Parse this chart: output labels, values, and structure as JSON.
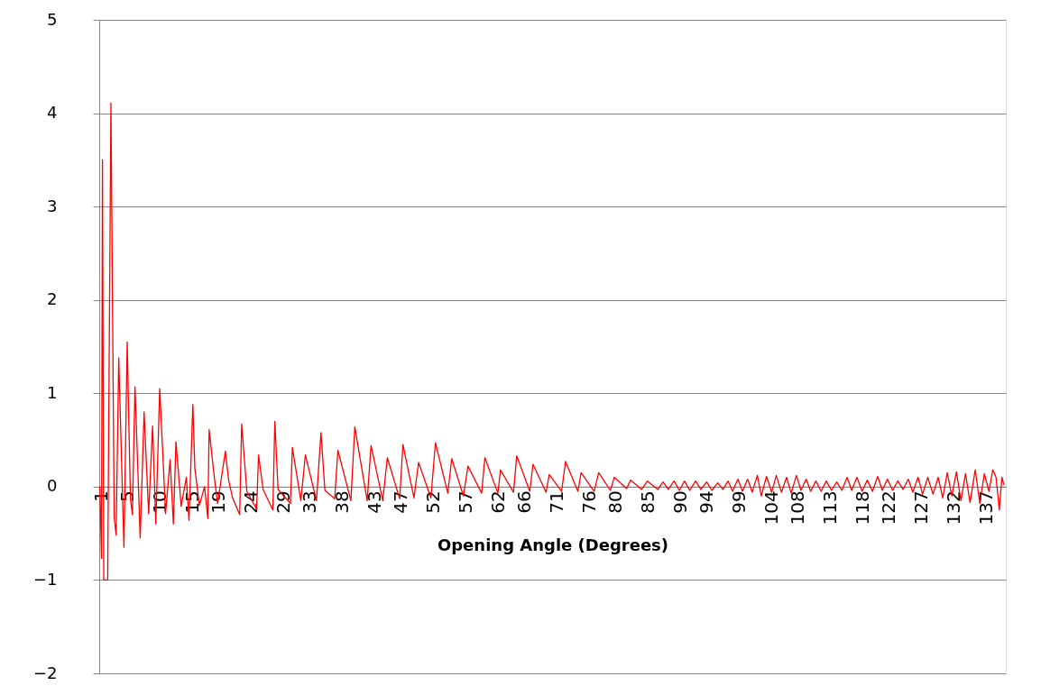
{
  "chart_data": {
    "type": "line",
    "xlabel": "Opening Angle (Degrees)",
    "xlim": [
      0.6,
      140
    ],
    "xticks": [
      1,
      5,
      10,
      15,
      19,
      24,
      29,
      33,
      38,
      43,
      47,
      52,
      57,
      62,
      66,
      71,
      76,
      80,
      85,
      90,
      94,
      99,
      104,
      108,
      113,
      118,
      122,
      127,
      132,
      137
    ],
    "ylim": [
      -2,
      5
    ],
    "yticks": [
      -2,
      -1,
      0,
      1,
      2,
      3,
      4,
      5
    ],
    "grid": "y",
    "marker": "none",
    "line_style": "solid",
    "series": [
      {
        "color": "#ff0000",
        "x": [
          0.7,
          0.95,
          1.1,
          1.3,
          1.9,
          2.4,
          2.9,
          3.2,
          3.6,
          4.4,
          4.9,
          5.4,
          5.7,
          6.1,
          6.9,
          7.5,
          8.2,
          8.8,
          9.3,
          9.9,
          10.3,
          10.8,
          11.5,
          12.0,
          12.4,
          13.2,
          14.0,
          14.4,
          15.0,
          15.3,
          16.0,
          16.8,
          17.3,
          17.5,
          18.3,
          18.8,
          20.0,
          20.5,
          21.1,
          22.2,
          22.5,
          23.3,
          24.8,
          25.1,
          25.8,
          27.3,
          27.6,
          28.1,
          30.0,
          30.3,
          31.6,
          32.3,
          34.0,
          34.7,
          35.3,
          36.8,
          37.3,
          39.3,
          39.9,
          41.8,
          42.4,
          44.2,
          44.9,
          46.8,
          47.3,
          49.0,
          49.7,
          51.6,
          52.3,
          54.2,
          54.8,
          56.6,
          57.3,
          59.4,
          59.9,
          61.9,
          62.3,
          64.3,
          64.8,
          66.8,
          67.3,
          69.3,
          69.8,
          71.7,
          72.3,
          74.2,
          74.7,
          76.7,
          77.4,
          79.2,
          79.8,
          81.7,
          82.3,
          84.0,
          84.9,
          86.5,
          87.3,
          88.1,
          89.0,
          89.8,
          90.6,
          91.4,
          92.3,
          93.1,
          94.0,
          94.8,
          95.7,
          96.5,
          97.3,
          98.0,
          98.8,
          99.5,
          100.3,
          101.0,
          101.8,
          102.4,
          103.2,
          104.0,
          104.7,
          105.5,
          106.3,
          107.0,
          107.8,
          108.5,
          109.3,
          110.0,
          110.8,
          111.6,
          112.4,
          113.2,
          114.0,
          114.8,
          115.6,
          116.3,
          117.1,
          117.9,
          118.7,
          119.5,
          120.3,
          121.0,
          121.8,
          122.6,
          123.4,
          124.2,
          125.0,
          125.7,
          126.5,
          127.2,
          128.0,
          128.8,
          129.6,
          130.3,
          131.0,
          131.7,
          132.4,
          133.1,
          133.8,
          134.5,
          135.3,
          136.0,
          136.7,
          137.4,
          138.0,
          138.5,
          139.0,
          139.4,
          139.7
        ],
        "values": [
          0,
          -0.77,
          3.5,
          -1,
          -1,
          4.11,
          -0.33,
          -0.52,
          1.38,
          -0.65,
          1.55,
          -0.13,
          -0.3,
          1.07,
          -0.55,
          0.8,
          -0.29,
          0.65,
          -0.4,
          1.05,
          0.47,
          -0.29,
          0.29,
          -0.4,
          0.48,
          -0.21,
          0.1,
          -0.36,
          0.88,
          0.2,
          -0.2,
          0,
          -0.34,
          0.61,
          0.1,
          -0.18,
          0.38,
          0.07,
          -0.12,
          -0.3,
          0.67,
          -0.05,
          -0.24,
          0.34,
          -0.03,
          -0.25,
          0.7,
          -0.03,
          -0.18,
          0.42,
          -0.15,
          0.34,
          -0.15,
          0.58,
          -0.04,
          -0.13,
          0.39,
          -0.15,
          0.64,
          -0.15,
          0.44,
          -0.15,
          0.31,
          -0.13,
          0.45,
          -0.12,
          0.26,
          -0.12,
          0.47,
          -0.07,
          0.3,
          -0.1,
          0.22,
          -0.07,
          0.31,
          -0.07,
          0.18,
          -0.06,
          0.33,
          -0.05,
          0.24,
          -0.06,
          0.13,
          -0.05,
          0.27,
          -0.05,
          0.15,
          -0.05,
          0.15,
          -0.04,
          0.1,
          -0.02,
          0.07,
          -0.03,
          0.06,
          -0.03,
          0.05,
          -0.03,
          0.06,
          -0.04,
          0.06,
          -0.04,
          0.06,
          -0.03,
          0.05,
          -0.04,
          0.04,
          -0.03,
          0.06,
          -0.05,
          0.08,
          -0.05,
          0.08,
          -0.06,
          0.12,
          -0.1,
          0.11,
          -0.06,
          0.12,
          -0.06,
          0.1,
          -0.07,
          0.12,
          -0.04,
          0.08,
          -0.05,
          0.06,
          -0.05,
          0.06,
          -0.04,
          0.05,
          -0.04,
          0.1,
          -0.04,
          0.1,
          -0.05,
          0.07,
          -0.05,
          0.11,
          -0.04,
          0.08,
          -0.04,
          0.06,
          -0.03,
          0.08,
          -0.06,
          0.1,
          -0.08,
          0.1,
          -0.08,
          0.1,
          -0.12,
          0.15,
          -0.1,
          0.16,
          -0.15,
          0.14,
          -0.17,
          0.18,
          -0.18,
          0.14,
          -0.05,
          0.18,
          0.1,
          -0.25,
          0.1,
          0.02
        ]
      }
    ]
  }
}
